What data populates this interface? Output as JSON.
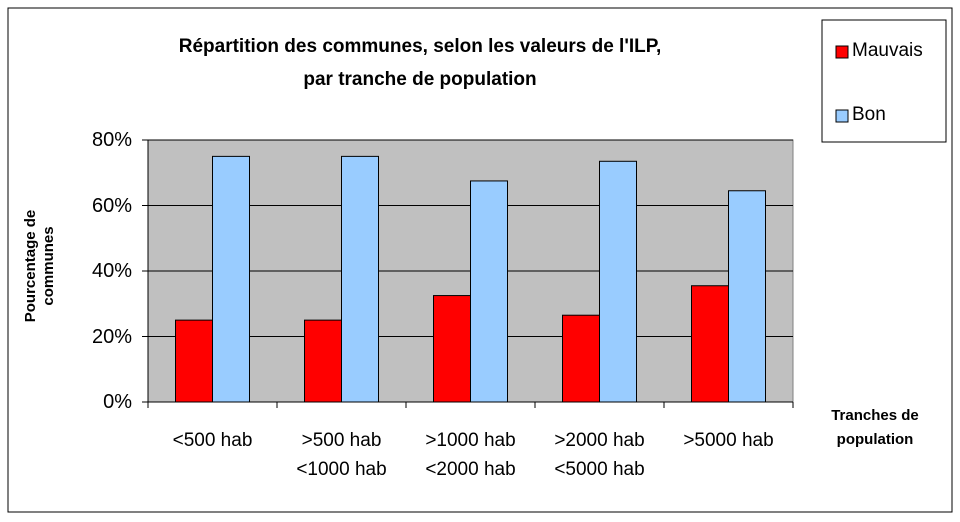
{
  "chart_data": {
    "type": "bar",
    "title": "Répartition des communes, selon les valeurs de l'ILP,\npar tranche de population",
    "y_label": "Pourcentage de\ncommunes",
    "x_label": "Tranches de\npopulation",
    "categories": [
      "<500 hab",
      ">500 hab\n<1000 hab",
      ">1000 hab\n<2000 hab",
      ">2000 hab\n<5000 hab",
      ">5000 hab"
    ],
    "series": [
      {
        "name": "Mauvais",
        "color": "#ff0000",
        "values": [
          25,
          25,
          32.5,
          26.5,
          35.5
        ]
      },
      {
        "name": "Bon",
        "color": "#99ccff",
        "values": [
          75,
          75,
          67.5,
          73.5,
          64.5
        ]
      }
    ],
    "ylim": [
      0,
      80
    ],
    "yticks": [
      {
        "value": 0,
        "label": "0%"
      },
      {
        "value": 20,
        "label": "20%"
      },
      {
        "value": 40,
        "label": "40%"
      },
      {
        "value": 60,
        "label": "60%"
      },
      {
        "value": 80,
        "label": "80%"
      }
    ],
    "grid": true,
    "legend": "top-right"
  }
}
